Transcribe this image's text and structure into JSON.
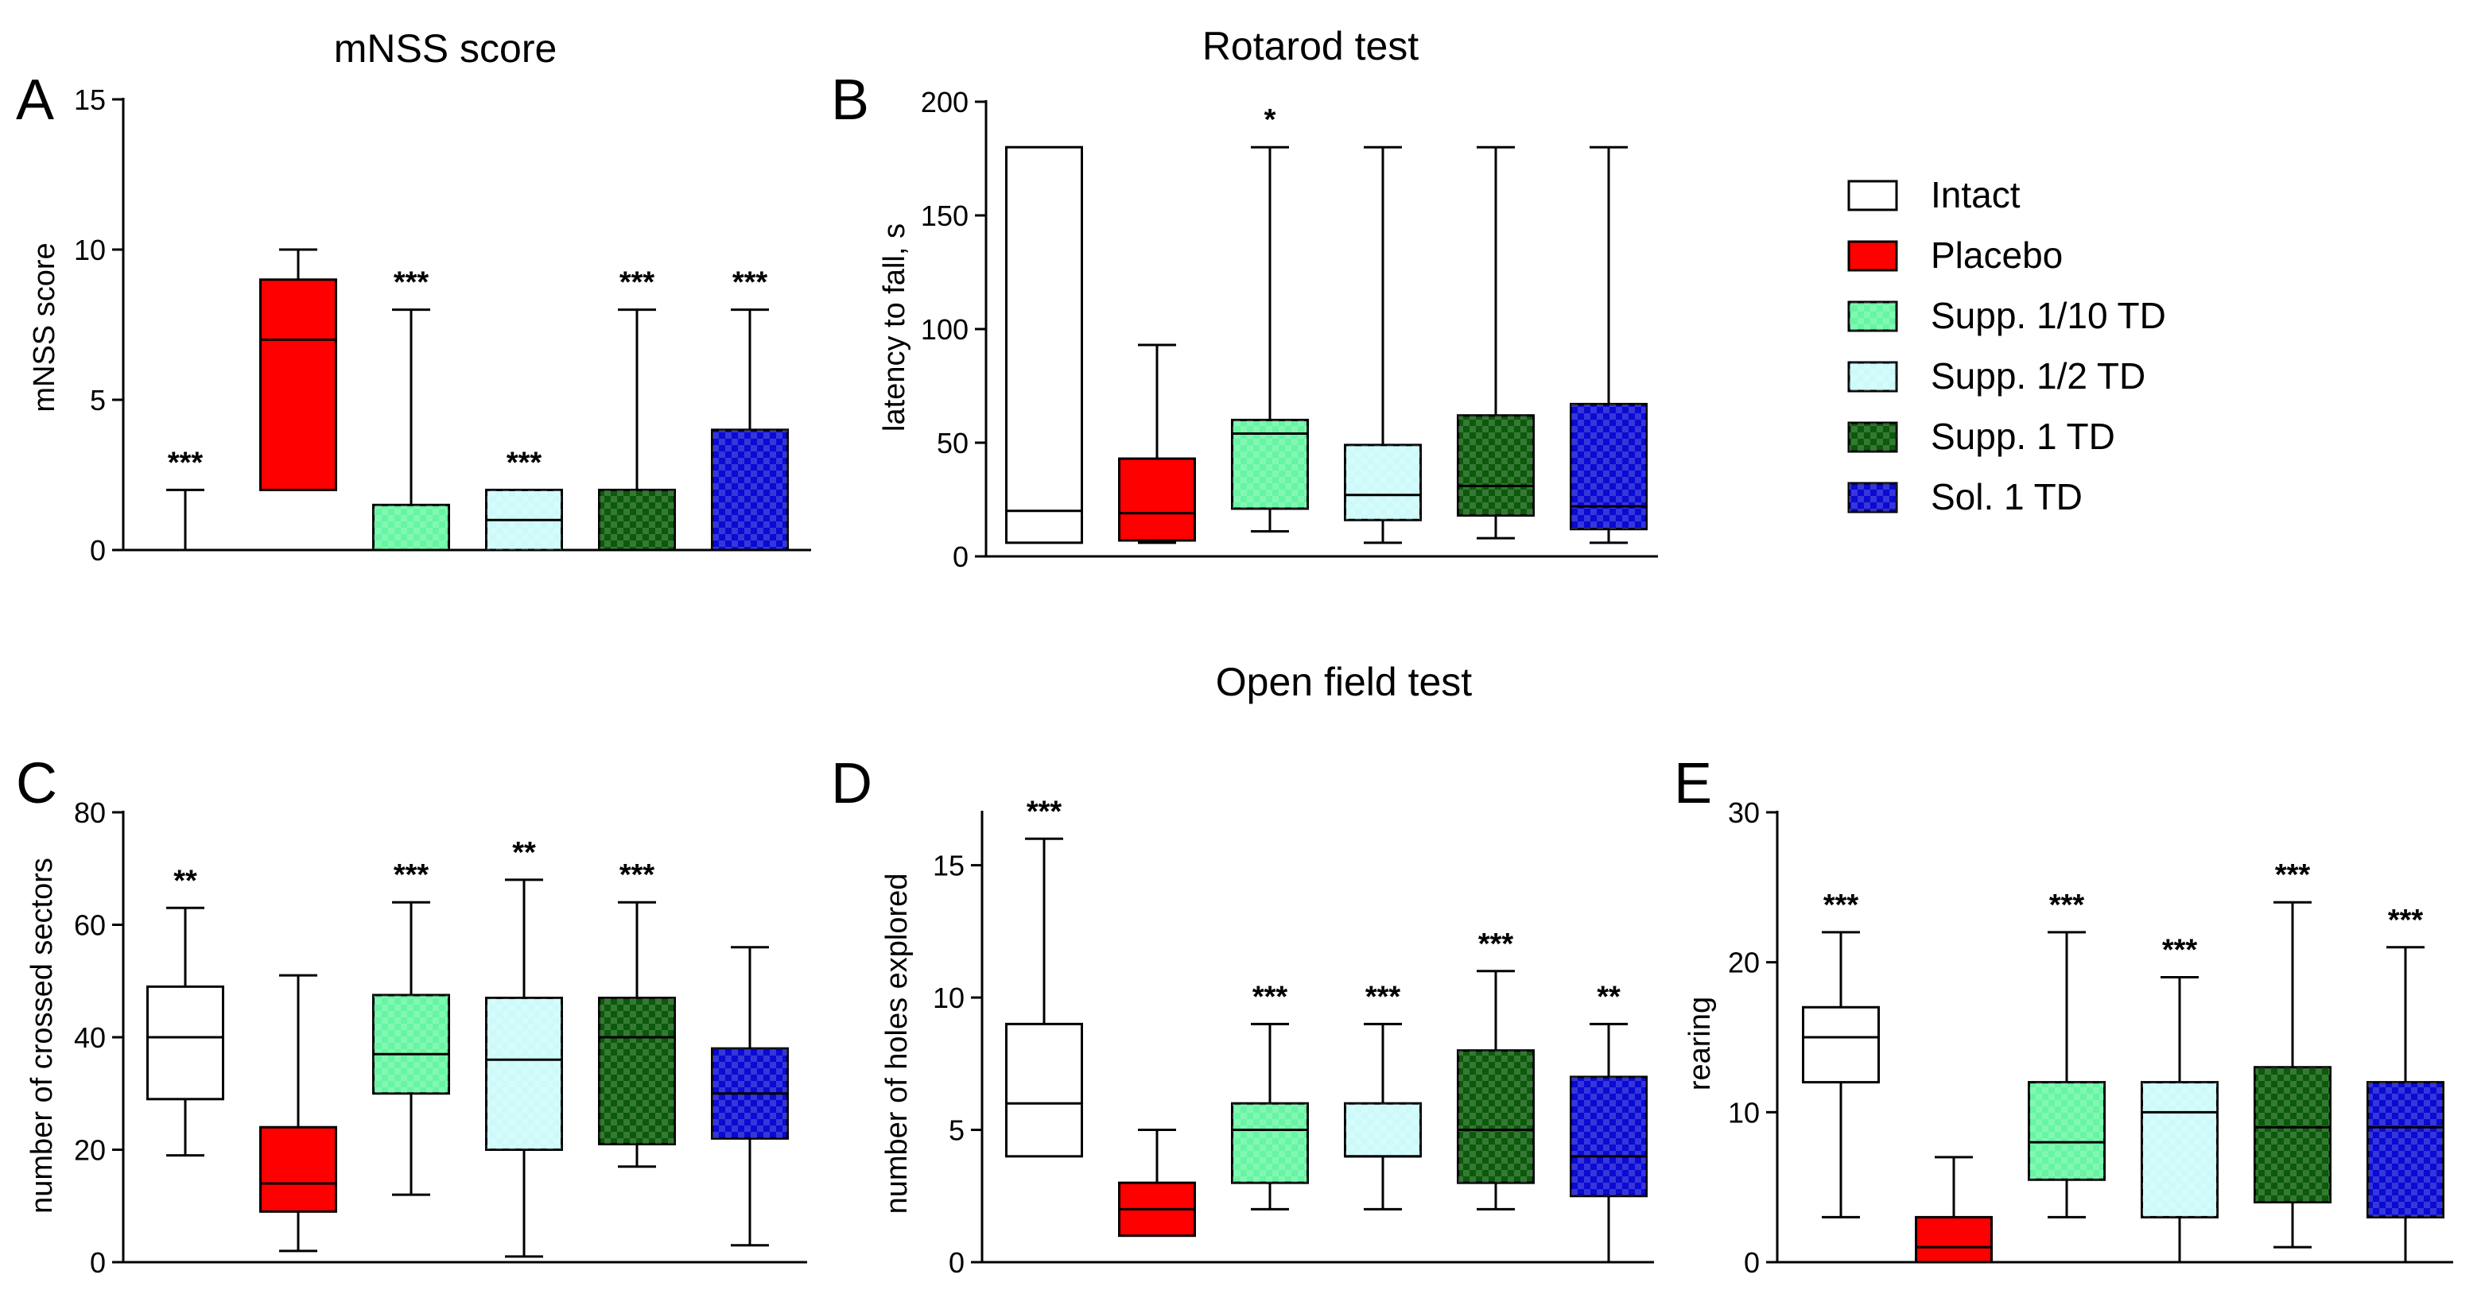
{
  "groups": [
    {
      "name": "Intact",
      "color": "#ffffff",
      "pattern": false
    },
    {
      "name": "Placebo",
      "color": "#ff0000",
      "pattern": false
    },
    {
      "name": "Supp. 1/10 TD",
      "color": "#66f5a3",
      "pattern": true
    },
    {
      "name": "Supp. 1/2 TD",
      "color": "#ccfafa",
      "pattern": true
    },
    {
      "name": "Supp. 1 TD",
      "color": "#0a5a0a",
      "pattern": true
    },
    {
      "name": "Sol. 1 TD",
      "color": "#0a0ad2",
      "pattern": true
    }
  ],
  "section_title": "Open field test",
  "chart_data": [
    {
      "type": "boxplot",
      "panel": "A",
      "title": "mNSS score",
      "ylabel": "mNSS score",
      "ylim": [
        0,
        15
      ],
      "yticks": [
        0,
        5,
        10,
        15
      ],
      "boxes": [
        {
          "group": "Intact",
          "min": 0,
          "q1": 0,
          "median": 0,
          "q3": 0,
          "max": 2,
          "sig": "***"
        },
        {
          "group": "Placebo",
          "min": 2,
          "q1": 2,
          "median": 7,
          "q3": 9,
          "max": 10,
          "sig": ""
        },
        {
          "group": "Supp. 1/10 TD",
          "min": 0,
          "q1": 0,
          "median": 0,
          "q3": 1.5,
          "max": 8,
          "sig": "***"
        },
        {
          "group": "Supp. 1/2 TD",
          "min": 0,
          "q1": 0,
          "median": 1,
          "q3": 2,
          "max": 2,
          "sig": "***"
        },
        {
          "group": "Supp. 1 TD",
          "min": 0,
          "q1": 0,
          "median": 0,
          "q3": 2,
          "max": 8,
          "sig": "***"
        },
        {
          "group": "Sol. 1 TD",
          "min": 0,
          "q1": 0,
          "median": 0,
          "q3": 4,
          "max": 8,
          "sig": "***"
        }
      ]
    },
    {
      "type": "boxplot",
      "panel": "B",
      "title": "Rotarod test",
      "ylabel": "latency to fall, s",
      "ylim": [
        0,
        200
      ],
      "yticks": [
        0,
        50,
        100,
        150,
        200
      ],
      "boxes": [
        {
          "group": "Intact",
          "min": 6,
          "q1": 6,
          "median": 20,
          "q3": 180,
          "max": 180,
          "sig": ""
        },
        {
          "group": "Placebo",
          "min": 6,
          "q1": 7,
          "median": 19,
          "q3": 43,
          "max": 93,
          "sig": ""
        },
        {
          "group": "Supp. 1/10 TD",
          "min": 11,
          "q1": 21,
          "median": 54,
          "q3": 60,
          "max": 180,
          "sig": "*"
        },
        {
          "group": "Supp. 1/2 TD",
          "min": 6,
          "q1": 16,
          "median": 27,
          "q3": 49,
          "max": 180,
          "sig": ""
        },
        {
          "group": "Supp. 1 TD",
          "min": 8,
          "q1": 18,
          "median": 31,
          "q3": 62,
          "max": 180,
          "sig": ""
        },
        {
          "group": "Sol. 1 TD",
          "min": 6,
          "q1": 12,
          "median": 22,
          "q3": 67,
          "max": 180,
          "sig": ""
        }
      ]
    },
    {
      "type": "boxplot",
      "panel": "C",
      "title": "",
      "ylabel": "number of crossed sectors",
      "ylim": [
        0,
        80
      ],
      "yticks": [
        0,
        20,
        40,
        60,
        80
      ],
      "boxes": [
        {
          "group": "Intact",
          "min": 19,
          "q1": 29,
          "median": 40,
          "q3": 49,
          "max": 63,
          "sig": "**"
        },
        {
          "group": "Placebo",
          "min": 2,
          "q1": 9,
          "median": 14,
          "q3": 24,
          "max": 51,
          "sig": ""
        },
        {
          "group": "Supp. 1/10 TD",
          "min": 12,
          "q1": 30,
          "median": 37,
          "q3": 47.5,
          "max": 64,
          "sig": "***"
        },
        {
          "group": "Supp. 1/2 TD",
          "min": 1,
          "q1": 20,
          "median": 36,
          "q3": 47,
          "max": 68,
          "sig": "**"
        },
        {
          "group": "Supp. 1 TD",
          "min": 17,
          "q1": 21,
          "median": 40,
          "q3": 47,
          "max": 64,
          "sig": "***"
        },
        {
          "group": "Sol. 1 TD",
          "min": 3,
          "q1": 22,
          "median": 30,
          "q3": 38,
          "max": 56,
          "sig": ""
        }
      ]
    },
    {
      "type": "boxplot",
      "panel": "D",
      "title": "",
      "ylabel": "number of holes explored",
      "ylim": [
        0,
        17
      ],
      "yticks": [
        0,
        5,
        10,
        15
      ],
      "boxes": [
        {
          "group": "Intact",
          "min": 4,
          "q1": 4,
          "median": 6,
          "q3": 9,
          "max": 16,
          "sig": "***"
        },
        {
          "group": "Placebo",
          "min": 1,
          "q1": 1,
          "median": 2,
          "q3": 3,
          "max": 5,
          "sig": ""
        },
        {
          "group": "Supp. 1/10 TD",
          "min": 2,
          "q1": 3,
          "median": 5,
          "q3": 6,
          "max": 9,
          "sig": "***"
        },
        {
          "group": "Supp. 1/2 TD",
          "min": 2,
          "q1": 4,
          "median": 4,
          "q3": 6,
          "max": 9,
          "sig": "***"
        },
        {
          "group": "Supp. 1 TD",
          "min": 2,
          "q1": 3,
          "median": 5,
          "q3": 8,
          "max": 11,
          "sig": "***"
        },
        {
          "group": "Sol. 1 TD",
          "min": 0,
          "q1": 2.5,
          "median": 4,
          "q3": 7,
          "max": 9,
          "sig": "**"
        }
      ]
    },
    {
      "type": "boxplot",
      "panel": "E",
      "title": "",
      "ylabel": "rearing",
      "ylim": [
        0,
        30
      ],
      "yticks": [
        0,
        10,
        20,
        30
      ],
      "boxes": [
        {
          "group": "Intact",
          "min": 3,
          "q1": 12,
          "median": 15,
          "q3": 17,
          "max": 22,
          "sig": "***"
        },
        {
          "group": "Placebo",
          "min": 0,
          "q1": 0,
          "median": 1,
          "q3": 3,
          "max": 7,
          "sig": ""
        },
        {
          "group": "Supp. 1/10 TD",
          "min": 3,
          "q1": 5.5,
          "median": 8,
          "q3": 12,
          "max": 22,
          "sig": "***"
        },
        {
          "group": "Supp. 1/2 TD",
          "min": 0,
          "q1": 3,
          "median": 10,
          "q3": 12,
          "max": 19,
          "sig": "***"
        },
        {
          "group": "Supp. 1 TD",
          "min": 1,
          "q1": 4,
          "median": 9,
          "q3": 13,
          "max": 24,
          "sig": "***"
        },
        {
          "group": "Sol. 1 TD",
          "min": 0,
          "q1": 3,
          "median": 9,
          "q3": 12,
          "max": 21,
          "sig": "***"
        }
      ]
    }
  ]
}
